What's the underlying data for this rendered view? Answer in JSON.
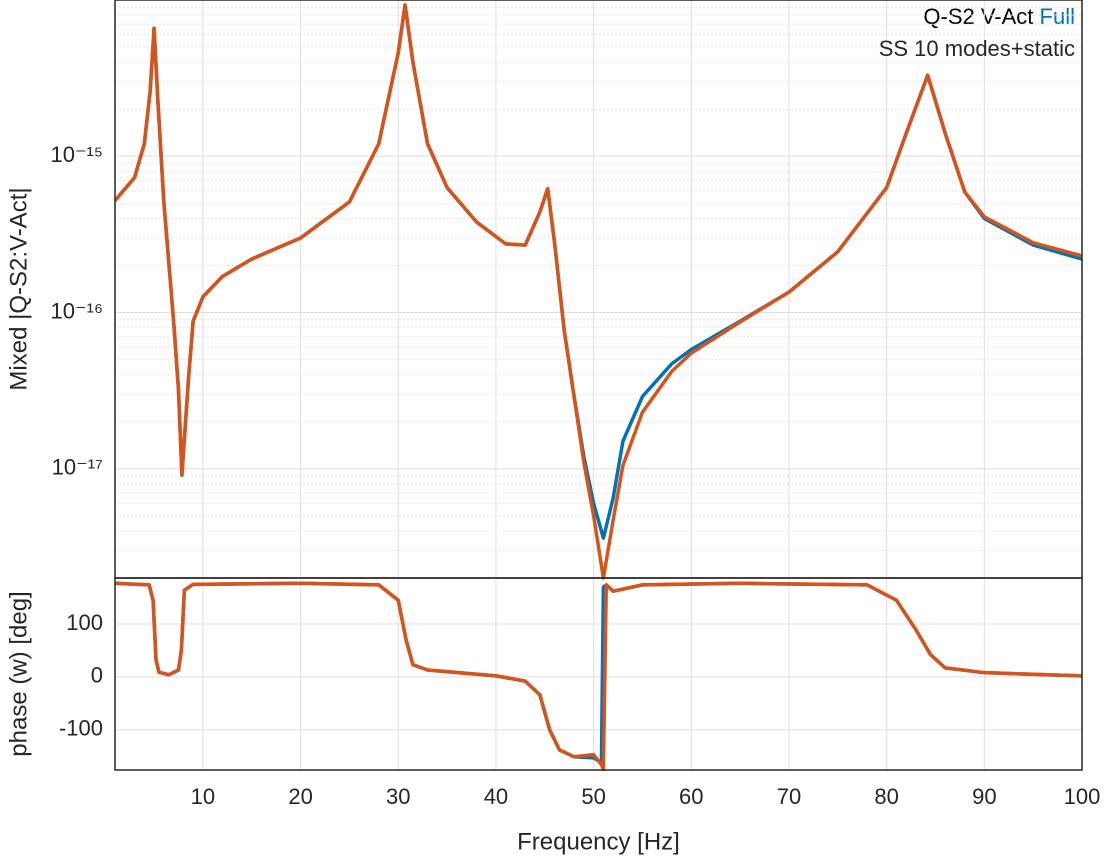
{
  "chart_data": [
    {
      "type": "line",
      "ylabel": "Mixed |Q-S2:V-Act|",
      "legend_title": "Q-S2 V-Act",
      "legend": "upper right",
      "log_y": true,
      "grid": true,
      "minor_grid": true,
      "show_xtick_labels": false,
      "xlim": [
        1,
        100
      ],
      "xticks": [
        10,
        20,
        30,
        40,
        50,
        60,
        70,
        80,
        90,
        100
      ],
      "ylim": [
        2e-18,
        1e-14
      ],
      "yticks": [
        {
          "value": 1e-17,
          "label": "10⁻¹⁷"
        },
        {
          "value": 1e-16,
          "label": "10⁻¹⁶"
        },
        {
          "value": 1e-15,
          "label": "10⁻¹⁵"
        }
      ],
      "x": [
        1,
        3,
        4,
        4.6,
        5,
        5.4,
        6,
        7,
        7.5,
        7.85,
        8.5,
        9,
        10,
        12,
        15,
        20,
        25,
        28,
        30,
        30.7,
        31.5,
        33,
        35,
        38,
        41,
        43,
        44.5,
        45.3,
        46,
        47,
        48,
        49,
        50,
        51,
        52,
        53,
        55,
        58,
        60,
        65,
        70,
        75,
        80,
        82,
        84.2,
        86,
        88,
        90,
        95,
        100
      ],
      "series": [
        {
          "name": "Full",
          "color": "#0072bd",
          "values": [
            5.2e-16,
            7.3e-16,
            1.2e-15,
            2.6e-15,
            6.6e-15,
            2.2e-15,
            5.1e-16,
            8.8e-17,
            3.2e-17,
            9.1e-18,
            3.6e-17,
            8.8e-17,
            1.26e-16,
            1.7e-16,
            2.2e-16,
            3e-16,
            5.1e-16,
            1.2e-15,
            4.6e-15,
            9.3e-15,
            4e-15,
            1.2e-15,
            6.3e-16,
            3.8e-16,
            2.75e-16,
            2.7e-16,
            4.4e-16,
            6.2e-16,
            2.8e-16,
            7.6e-17,
            2.9e-17,
            1.2e-17,
            6e-18,
            3.6e-18,
            6.5e-18,
            1.5e-17,
            2.9e-17,
            4.7e-17,
            5.8e-17,
            8.8e-17,
            1.35e-16,
            2.45e-16,
            6.3e-16,
            1.4e-15,
            3.3e-15,
            1.4e-15,
            5.9e-16,
            4e-16,
            2.7e-16,
            2.2e-16
          ]
        },
        {
          "name": "SS 10 modes+static",
          "color": "#d95319",
          "values": [
            5.2e-16,
            7.3e-16,
            1.2e-15,
            2.6e-15,
            6.6e-15,
            2.2e-15,
            5.1e-16,
            8.8e-17,
            3.2e-17,
            9.1e-18,
            3.6e-17,
            8.8e-17,
            1.26e-16,
            1.7e-16,
            2.2e-16,
            3e-16,
            5.1e-16,
            1.2e-15,
            4.6e-15,
            9.3e-15,
            4e-15,
            1.2e-15,
            6.3e-16,
            3.8e-16,
            2.75e-16,
            2.7e-16,
            4.4e-16,
            6.2e-16,
            2.8e-16,
            7.6e-17,
            2.9e-17,
            1.1e-17,
            5e-18,
            2e-18,
            4.7e-18,
            1.05e-17,
            2.3e-17,
            4.2e-17,
            5.5e-17,
            8.7e-17,
            1.35e-16,
            2.45e-16,
            6.3e-16,
            1.4e-15,
            3.3e-15,
            1.4e-15,
            5.9e-16,
            4.1e-16,
            2.8e-16,
            2.3e-16
          ]
        }
      ]
    },
    {
      "type": "line",
      "xlabel": "Frequency [Hz]",
      "ylabel": "phase (w) [deg]",
      "grid": true,
      "show_xtick_labels": true,
      "xlim": [
        1,
        100
      ],
      "xticks": [
        10,
        20,
        30,
        40,
        50,
        60,
        70,
        80,
        90,
        100
      ],
      "ylim": [
        -176,
        187
      ],
      "yticks": [
        -100,
        0,
        100
      ],
      "x": [
        1,
        4.5,
        4.9,
        5.2,
        5.5,
        6.5,
        7.5,
        7.8,
        8.1,
        9,
        20,
        28,
        30,
        30.8,
        31.5,
        33,
        40,
        43,
        44.5,
        45.5,
        46.5,
        48,
        50,
        50.8,
        51,
        51.3,
        52,
        55,
        65,
        78,
        81,
        83,
        84.5,
        86,
        90,
        100
      ],
      "series": [
        {
          "name": "Full",
          "color": "#0072bd",
          "values": [
            177,
            174,
            145,
            32,
            9,
            4,
            13,
            51,
            164,
            175,
            177,
            174,
            145,
            70,
            23,
            13,
            2,
            -8,
            -34,
            -100,
            -138,
            -151,
            -153,
            -162,
            170,
            174,
            162,
            174,
            177,
            174,
            145,
            89,
            42,
            17,
            8,
            2
          ]
        },
        {
          "name": "SS 10 modes+static",
          "color": "#d95319",
          "values": [
            177,
            174,
            145,
            32,
            9,
            4,
            13,
            51,
            164,
            175,
            177,
            174,
            145,
            70,
            23,
            13,
            2,
            -8,
            -34,
            -100,
            -138,
            -151,
            -147,
            -166,
            -175,
            174,
            162,
            174,
            177,
            174,
            145,
            89,
            42,
            17,
            8,
            2
          ]
        }
      ]
    }
  ]
}
